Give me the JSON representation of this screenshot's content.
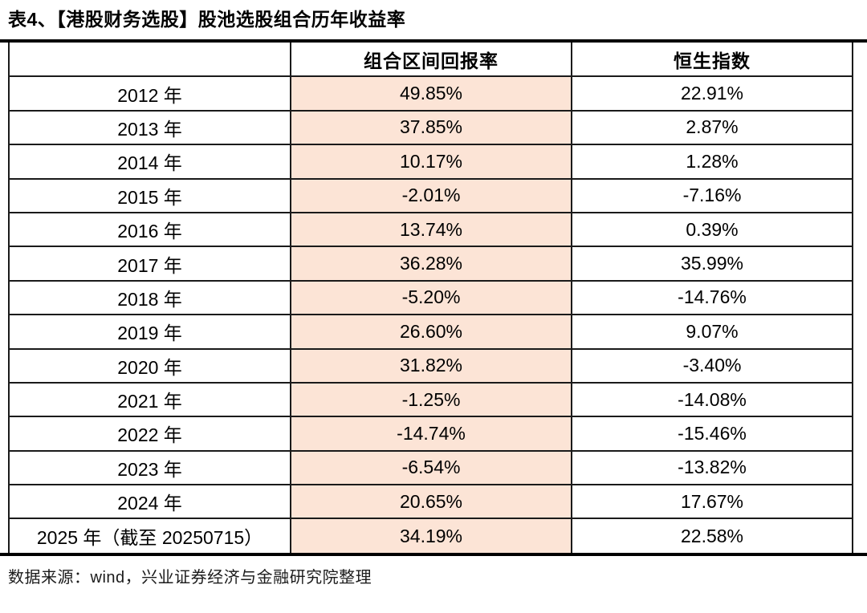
{
  "title": "表4、【港股财务选股】股池选股组合历年收益率",
  "footer": "数据来源：wind，兴业证券经济与金融研究院整理",
  "colors": {
    "highlight_cell": "#fce4d6",
    "border": "#1a1a1a",
    "rule": "#000000",
    "text": "#000000"
  },
  "table": {
    "columns": [
      "",
      "组合区间回报率",
      "恒生指数"
    ],
    "rows": [
      {
        "year": "2012 年",
        "portfolio": "49.85%",
        "hsi": "22.91%"
      },
      {
        "year": "2013 年",
        "portfolio": "37.85%",
        "hsi": "2.87%"
      },
      {
        "year": "2014 年",
        "portfolio": "10.17%",
        "hsi": "1.28%"
      },
      {
        "year": "2015 年",
        "portfolio": "-2.01%",
        "hsi": "-7.16%"
      },
      {
        "year": "2016 年",
        "portfolio": "13.74%",
        "hsi": "0.39%"
      },
      {
        "year": "2017 年",
        "portfolio": "36.28%",
        "hsi": "35.99%"
      },
      {
        "year": "2018 年",
        "portfolio": "-5.20%",
        "hsi": "-14.76%"
      },
      {
        "year": "2019 年",
        "portfolio": "26.60%",
        "hsi": "9.07%"
      },
      {
        "year": "2020 年",
        "portfolio": "31.82%",
        "hsi": "-3.40%"
      },
      {
        "year": "2021 年",
        "portfolio": "-1.25%",
        "hsi": "-14.08%"
      },
      {
        "year": "2022 年",
        "portfolio": "-14.74%",
        "hsi": "-15.46%"
      },
      {
        "year": "2023 年",
        "portfolio": "-6.54%",
        "hsi": "-13.82%"
      },
      {
        "year": "2024 年",
        "portfolio": "20.65%",
        "hsi": "17.67%"
      },
      {
        "year": "2025 年（截至 20250715）",
        "portfolio": "34.19%",
        "hsi": "22.58%"
      }
    ]
  }
}
